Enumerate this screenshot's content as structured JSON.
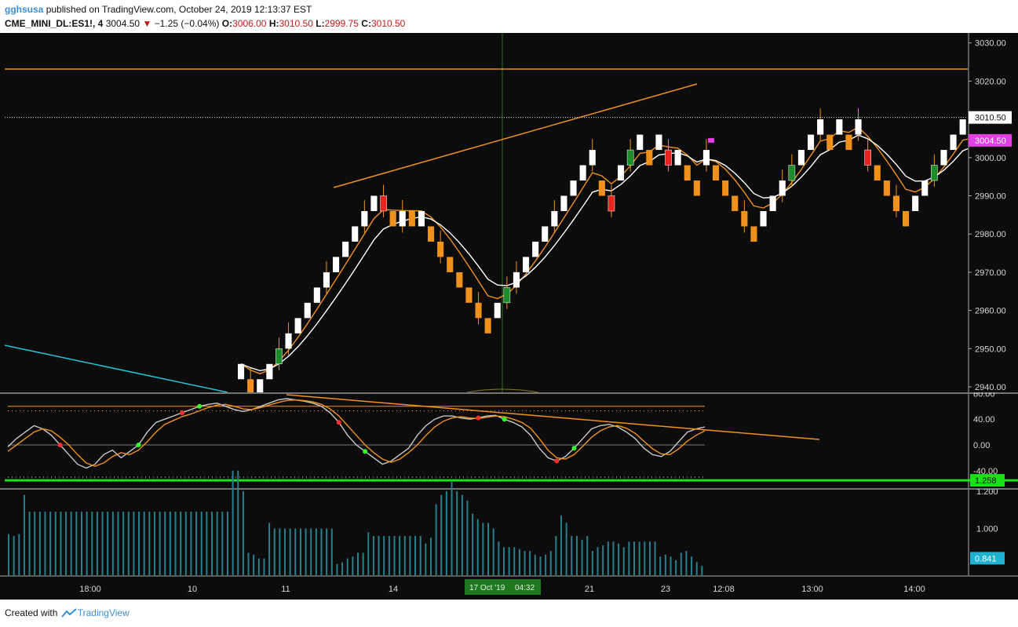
{
  "header": {
    "user": "gghsusa",
    "published": "published on TradingView.com, October 24, 2019 12:13:37 EST",
    "symbol": "CME_MINI_DL:ES1!, 4",
    "last": "3004.50",
    "change": "−1.25 (−0.04%)",
    "o_label": "O:",
    "o_value": "3006.00",
    "h_label": "H:",
    "h_value": "3010.50",
    "l_label": "L:",
    "l_value": "2999.75",
    "c_label": "C:",
    "c_value": "3010.50"
  },
  "footer": {
    "created_with": "Created with",
    "brand": "TradingView"
  },
  "colors": {
    "background": "#0c0c0c",
    "up_brick": "#ffffff",
    "down_brick": "#f0911c",
    "reversal_up": "#1e8c2a",
    "reversal_down": "#e8251c",
    "ma": "#f0911c",
    "trend_line": "#f0911c",
    "cyan_line": "#27c4d8",
    "oscillator_fast": "#c8c8c8",
    "oscillator_slow": "#f0911c",
    "volume_bar": "#2a7f8f",
    "green_level": "#19e019",
    "magenta": "#e23ee2"
  },
  "chart_data": [
    {
      "type": "renko",
      "symbol": "CME_MINI_DL:ES1!",
      "box_size": 4,
      "ylim": [
        2938,
        3034
      ],
      "y_ticks": [
        "2940.00",
        "2950.00",
        "2960.00",
        "2970.00",
        "2980.00",
        "2990.00",
        "3000.00",
        "3010.00",
        "3020.00",
        "3030.00"
      ],
      "price_labels": [
        {
          "text": "3010.50",
          "value": 3010.5,
          "style": "close"
        },
        {
          "text": "3004.50",
          "value": 3004.5,
          "style": "last"
        }
      ],
      "bricks": [
        {
          "dir": "up",
          "value": 2946
        },
        {
          "dir": "down",
          "value": 2942
        },
        {
          "dir": "up",
          "value": 2942
        },
        {
          "dir": "up",
          "value": 2946
        },
        {
          "dir": "up",
          "value": 2950,
          "reversal": true
        },
        {
          "dir": "up",
          "value": 2954
        },
        {
          "dir": "up",
          "value": 2958
        },
        {
          "dir": "up",
          "value": 2962
        },
        {
          "dir": "up",
          "value": 2966
        },
        {
          "dir": "up",
          "value": 2970
        },
        {
          "dir": "up",
          "value": 2974
        },
        {
          "dir": "up",
          "value": 2978
        },
        {
          "dir": "up",
          "value": 2982
        },
        {
          "dir": "up",
          "value": 2986
        },
        {
          "dir": "up",
          "value": 2990
        },
        {
          "dir": "down",
          "value": 2990,
          "reversal": true
        },
        {
          "dir": "down",
          "value": 2986
        },
        {
          "dir": "up",
          "value": 2986
        },
        {
          "dir": "down",
          "value": 2986
        },
        {
          "dir": "up",
          "value": 2986
        },
        {
          "dir": "down",
          "value": 2982
        },
        {
          "dir": "down",
          "value": 2978
        },
        {
          "dir": "down",
          "value": 2974
        },
        {
          "dir": "down",
          "value": 2970
        },
        {
          "dir": "down",
          "value": 2966
        },
        {
          "dir": "down",
          "value": 2962
        },
        {
          "dir": "down",
          "value": 2958
        },
        {
          "dir": "up",
          "value": 2962
        },
        {
          "dir": "up",
          "value": 2966,
          "reversal": true
        },
        {
          "dir": "up",
          "value": 2970
        },
        {
          "dir": "up",
          "value": 2974
        },
        {
          "dir": "up",
          "value": 2978
        },
        {
          "dir": "up",
          "value": 2982
        },
        {
          "dir": "up",
          "value": 2986
        },
        {
          "dir": "up",
          "value": 2990
        },
        {
          "dir": "up",
          "value": 2994
        },
        {
          "dir": "up",
          "value": 2998
        },
        {
          "dir": "up",
          "value": 3002
        },
        {
          "dir": "down",
          "value": 2994
        },
        {
          "dir": "down",
          "value": 2990,
          "reversal": true
        },
        {
          "dir": "up",
          "value": 2998
        },
        {
          "dir": "up",
          "value": 3002,
          "reversal": true
        },
        {
          "dir": "up",
          "value": 3006
        },
        {
          "dir": "down",
          "value": 3002
        },
        {
          "dir": "up",
          "value": 3006
        },
        {
          "dir": "down",
          "value": 3002,
          "reversal": true
        },
        {
          "dir": "up",
          "value": 3002
        },
        {
          "dir": "down",
          "value": 2998
        },
        {
          "dir": "down",
          "value": 2994
        },
        {
          "dir": "up",
          "value": 3002
        },
        {
          "dir": "down",
          "value": 2998
        },
        {
          "dir": "down",
          "value": 2994
        },
        {
          "dir": "down",
          "value": 2990
        },
        {
          "dir": "down",
          "value": 2986
        },
        {
          "dir": "down",
          "value": 2982
        },
        {
          "dir": "up",
          "value": 2986
        },
        {
          "dir": "up",
          "value": 2990
        },
        {
          "dir": "up",
          "value": 2994
        },
        {
          "dir": "up",
          "value": 2998,
          "reversal": true
        },
        {
          "dir": "up",
          "value": 3002
        },
        {
          "dir": "up",
          "value": 3006
        },
        {
          "dir": "up",
          "value": 3010
        },
        {
          "dir": "down",
          "value": 3006
        },
        {
          "dir": "up",
          "value": 3010
        },
        {
          "dir": "down",
          "value": 3006
        },
        {
          "dir": "up",
          "value": 3010
        },
        {
          "dir": "down",
          "value": 3002,
          "reversal": true
        },
        {
          "dir": "down",
          "value": 2998
        },
        {
          "dir": "down",
          "value": 2994
        },
        {
          "dir": "down",
          "value": 2990
        },
        {
          "dir": "down",
          "value": 2986
        },
        {
          "dir": "up",
          "value": 2990
        },
        {
          "dir": "up",
          "value": 2994
        },
        {
          "dir": "up",
          "value": 2998,
          "reversal": true
        },
        {
          "dir": "up",
          "value": 3002
        },
        {
          "dir": "up",
          "value": 3006
        },
        {
          "dir": "up",
          "value": 3010
        },
        {
          "dir": "down",
          "value": 3006
        },
        {
          "dir": "up",
          "value": 3010
        }
      ],
      "moving_averages": [
        {
          "color": "#f0911c",
          "values": []
        },
        {
          "color": "#ffffff",
          "values": []
        }
      ]
    },
    {
      "type": "line",
      "name": "oscillator",
      "ylim": [
        -55,
        80
      ],
      "y_ticks": [
        "80.00",
        "40.00",
        "0.00",
        "-40.00"
      ],
      "series": [
        {
          "color": "#c8c8c8",
          "values": [
            -3,
            10,
            20,
            30,
            25,
            15,
            0,
            -15,
            -30,
            -36,
            -30,
            -15,
            -8,
            -20,
            -10,
            0,
            20,
            35,
            40,
            45,
            50,
            55,
            60,
            63,
            65,
            60,
            55,
            52,
            55,
            60,
            65,
            70,
            72,
            70,
            68,
            65,
            60,
            50,
            35,
            15,
            0,
            -10,
            -20,
            -30,
            -25,
            -15,
            -5,
            15,
            30,
            40,
            45,
            45,
            42,
            40,
            42,
            45,
            46,
            40,
            35,
            28,
            15,
            -5,
            -20,
            -25,
            -18,
            -5,
            10,
            25,
            30,
            32,
            28,
            20,
            10,
            -5,
            -15,
            -18,
            -10,
            5,
            20,
            25,
            28
          ]
        },
        {
          "color": "#f0911c",
          "values": [
            -10,
            0,
            10,
            20,
            25,
            22,
            12,
            0,
            -15,
            -28,
            -33,
            -28,
            -18,
            -12,
            -15,
            -8,
            5,
            20,
            32,
            38,
            44,
            48,
            53,
            58,
            62,
            63,
            60,
            56,
            55,
            58,
            62,
            66,
            69,
            70,
            69,
            67,
            63,
            56,
            45,
            30,
            15,
            0,
            -12,
            -22,
            -27,
            -22,
            -12,
            0,
            15,
            28,
            37,
            42,
            44,
            42,
            41,
            43,
            45,
            44,
            40,
            35,
            26,
            10,
            -8,
            -20,
            -22,
            -15,
            -2,
            12,
            22,
            28,
            30,
            26,
            18,
            6,
            -6,
            -14,
            -15,
            -6,
            6,
            15,
            22
          ]
        }
      ],
      "markers": [],
      "levels": [
        60,
        53,
        -50
      ]
    },
    {
      "type": "bar",
      "name": "volume",
      "ylim": [
        0.75,
        1.35
      ],
      "y_ticks": [
        "1.200",
        "1.000"
      ],
      "price_labels": [
        {
          "text": "1.258",
          "value": 1.258
        },
        {
          "text": "0.841",
          "value": 0.841
        }
      ],
      "values": [
        0.97,
        0.96,
        0.97,
        1.18,
        1.09,
        1.09,
        1.09,
        1.09,
        1.09,
        1.09,
        1.09,
        1.09,
        1.09,
        1.09,
        1.09,
        1.09,
        1.09,
        1.09,
        1.09,
        1.09,
        1.09,
        1.09,
        1.09,
        1.09,
        1.09,
        1.09,
        1.09,
        1.09,
        1.09,
        1.09,
        1.09,
        1.09,
        1.09,
        1.09,
        1.09,
        1.09,
        1.09,
        1.09,
        1.09,
        1.09,
        1.09,
        1.09,
        1.09,
        1.31,
        1.31,
        1.2,
        0.87,
        0.86,
        0.84,
        0.84,
        1.03,
        1.0,
        1.0,
        1.0,
        1.0,
        1.0,
        1.0,
        1.0,
        1.0,
        1.0,
        1.0,
        1.0,
        1.0,
        0.81,
        0.82,
        0.84,
        0.85,
        0.87,
        0.87,
        0.98,
        0.96,
        0.96,
        0.96,
        0.96,
        0.96,
        0.96,
        0.96,
        0.96,
        0.96,
        0.96,
        0.92,
        0.95,
        1.13,
        1.18,
        1.2,
        1.25,
        1.2,
        1.18,
        1.15,
        1.08,
        1.05,
        1.03,
        1.03,
        1.0,
        0.93,
        0.9,
        0.9,
        0.9,
        0.89,
        0.88,
        0.88,
        0.86,
        0.85,
        0.86,
        0.88,
        0.96,
        1.07,
        1.03,
        0.96,
        0.96,
        0.94,
        0.96,
        0.88,
        0.9,
        0.91,
        0.93,
        0.93,
        0.92,
        0.9,
        0.93,
        0.93,
        0.93,
        0.93,
        0.93,
        0.93,
        0.85,
        0.86,
        0.85,
        0.83,
        0.87,
        0.88,
        0.85,
        0.82,
        0.8
      ]
    }
  ],
  "x_axis": {
    "labels": [
      "18:00",
      "10",
      "11",
      "14",
      "17",
      "21",
      "23",
      "12:08",
      "13:00",
      "14:00"
    ],
    "crosshair_date": "17 Oct '19",
    "crosshair_time": "04:32"
  }
}
